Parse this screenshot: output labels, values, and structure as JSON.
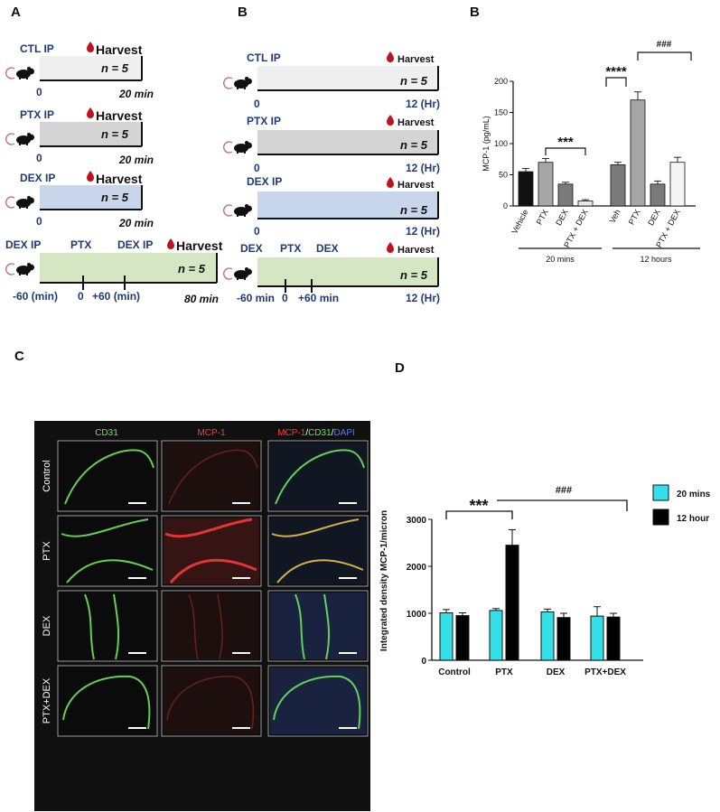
{
  "panels": {
    "a": "A",
    "b_left": "B",
    "b_right": "B",
    "c": "C",
    "d": "D"
  },
  "timelines_a": [
    {
      "label": "CTL IP",
      "harvest": "Harvest",
      "n": "n = 5",
      "start": "0",
      "end": "20 min",
      "color": "#efefef"
    },
    {
      "label": "PTX IP",
      "harvest": "Harvest",
      "n": "n = 5",
      "start": "0",
      "end": "20 min",
      "color": "#d4d4d4"
    },
    {
      "label": "DEX IP",
      "harvest": "Harvest",
      "n": "n = 5",
      "start": "0",
      "end": "20 min",
      "color": "#c8d6ec"
    }
  ],
  "timeline_a4": {
    "labels": [
      "DEX IP",
      "PTX",
      "DEX IP"
    ],
    "harvest": "Harvest",
    "n": "n = 5",
    "ticks": [
      "-60 (min)",
      "0",
      "+60 (min)"
    ],
    "end": "80 min",
    "color": "#d4e7c2"
  },
  "timelines_b": [
    {
      "label": "CTL IP",
      "harvest": "Harvest",
      "n": "n = 5",
      "start": "0",
      "end": "12 (Hr)",
      "color": "#efefef"
    },
    {
      "label": "PTX IP",
      "harvest": "Harvest",
      "n": "n = 5",
      "start": "0",
      "end": "12 (Hr)",
      "color": "#d4d4d4"
    },
    {
      "label": "DEX IP",
      "harvest": "Harvest",
      "n": "n = 5",
      "start": "0",
      "end": "12 (Hr)",
      "color": "#c8d6ec"
    }
  ],
  "timeline_b4": {
    "labels": [
      "DEX",
      "PTX",
      "DEX"
    ],
    "harvest": "Harvest",
    "n": "n = 5",
    "ticks": [
      "-60 min",
      "0",
      "+60 min"
    ],
    "end": "12 (Hr)",
    "color": "#d4e7c2"
  },
  "chart_data": [
    {
      "type": "bar",
      "ylabel": "MCP-1 (pg/mL)",
      "ylim": [
        0,
        200
      ],
      "yticks": [
        0,
        50,
        100,
        150,
        200
      ],
      "categories": [
        "Vehicle",
        "PTX",
        "DEX",
        "PTX + DEX",
        "Veh",
        "PTX",
        "DEX",
        "PTX + DEX"
      ],
      "values": [
        55,
        70,
        35,
        8,
        66,
        170,
        35,
        70
      ],
      "errors": [
        5,
        6,
        3,
        2,
        4,
        13,
        5,
        8
      ],
      "colors": [
        "#111111",
        "#a6a6a6",
        "#7a7a7a",
        "#e8e8e8",
        "#7a7a7a",
        "#a6a6a6",
        "#7a7a7a",
        "#f4f4f4"
      ],
      "groups": [
        "20 mins",
        "12 hours"
      ],
      "significance": [
        "***",
        "****",
        "###"
      ]
    },
    {
      "type": "bar",
      "ylabel": "Integrated density MCP-1/micron",
      "ylim": [
        0,
        3000
      ],
      "yticks": [
        0,
        1000,
        2000,
        3000
      ],
      "categories": [
        "Control",
        "PTX",
        "DEX",
        "PTX+DEX"
      ],
      "series": [
        {
          "name": "20 mins",
          "values": [
            1010,
            1060,
            1030,
            940
          ],
          "errors": [
            70,
            40,
            60,
            200
          ],
          "color": "#33e0e8"
        },
        {
          "name": "12 hour",
          "values": [
            950,
            2450,
            910,
            920
          ],
          "errors": [
            60,
            330,
            90,
            80
          ],
          "color": "#000000"
        }
      ],
      "significance": [
        "***",
        "###"
      ]
    }
  ],
  "micrograph": {
    "columns": [
      "CD31",
      "MCP-1"
    ],
    "merge_parts": [
      "MCP-1",
      "/",
      "CD31",
      "/",
      "DAPI"
    ],
    "rows": [
      "Control",
      "PTX",
      "DEX",
      "PTX+DEX"
    ],
    "colors": {
      "cd31": "#6fe35a",
      "mcp1": "#ff3b3b",
      "dapi": "#4f7bff"
    }
  }
}
